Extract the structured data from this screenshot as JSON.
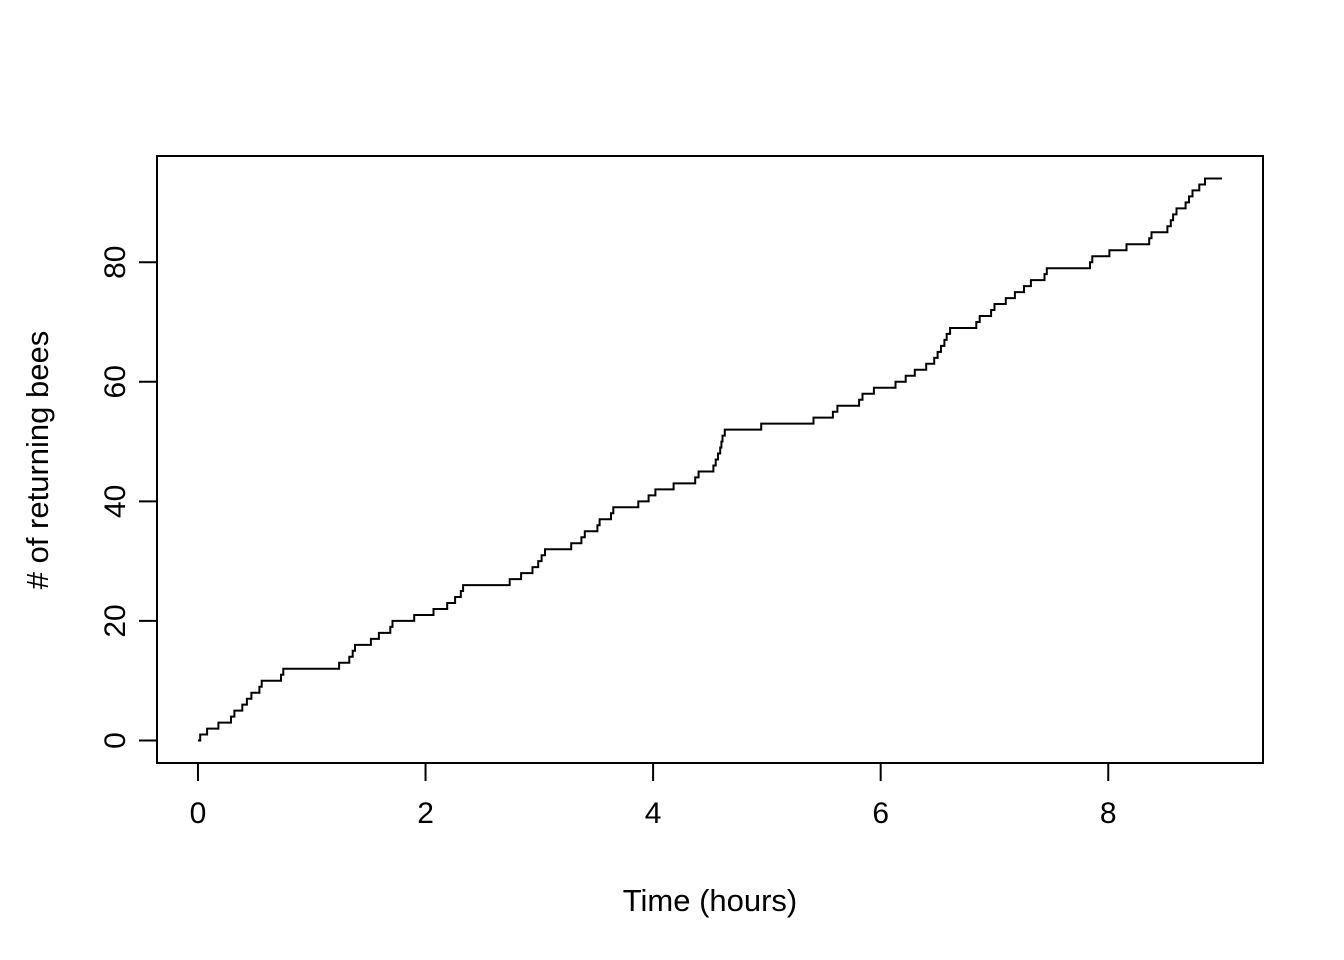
{
  "figure": {
    "background_color": "#ffffff",
    "foreground_color": "#000000",
    "title": ""
  },
  "chart_data": {
    "type": "line",
    "subtype": "step-cumulative-count",
    "title": "",
    "xlabel": "Time (hours)",
    "ylabel": "# of returning bees",
    "x_ticks": [
      0,
      2,
      4,
      6,
      8
    ],
    "y_ticks": [
      0,
      20,
      40,
      60,
      80
    ],
    "xlim": [
      -0.36,
      9.36
    ],
    "ylim": [
      -3.76,
      97.76
    ],
    "x_data_range": [
      0,
      9.0
    ],
    "y_data_range": [
      0,
      94
    ],
    "grid": false,
    "legend": null,
    "line_color": "#000000",
    "line_width": 2,
    "start_point": {
      "time": 0.0,
      "count": 0
    },
    "end_point": {
      "time": 9.0,
      "count": 94
    },
    "event_times": [
      0.02,
      0.08,
      0.18,
      0.29,
      0.32,
      0.39,
      0.43,
      0.47,
      0.54,
      0.56,
      0.73,
      0.75,
      1.24,
      1.33,
      1.36,
      1.38,
      1.52,
      1.59,
      1.69,
      1.71,
      1.9,
      2.07,
      2.19,
      2.26,
      2.31,
      2.33,
      2.74,
      2.84,
      2.94,
      2.99,
      3.02,
      3.05,
      3.28,
      3.37,
      3.4,
      3.51,
      3.53,
      3.63,
      3.65,
      3.87,
      3.96,
      4.02,
      4.18,
      4.37,
      4.4,
      4.53,
      4.55,
      4.57,
      4.59,
      4.6,
      4.61,
      4.63,
      4.95,
      5.41,
      5.58,
      5.62,
      5.81,
      5.84,
      5.94,
      6.13,
      6.22,
      6.3,
      6.4,
      6.47,
      6.5,
      6.53,
      6.56,
      6.58,
      6.61,
      6.84,
      6.87,
      6.97,
      7.0,
      7.1,
      7.18,
      7.26,
      7.32,
      7.44,
      7.46,
      7.84,
      7.86,
      8.01,
      8.16,
      8.36,
      8.38,
      8.52,
      8.55,
      8.57,
      8.6,
      8.68,
      8.71,
      8.74,
      8.8,
      8.85
    ],
    "plateaus_note": "counts 12 (t 0.75-1.24), 26 (t 2.33-2.74), 32 (t 3.05-3.28), 39 (t 3.65-3.87), 52 (t 4.63-4.95), 53 (t 4.95-5.41), 69 (t 6.61-6.84), 79 (t 7.46-7.84)"
  }
}
